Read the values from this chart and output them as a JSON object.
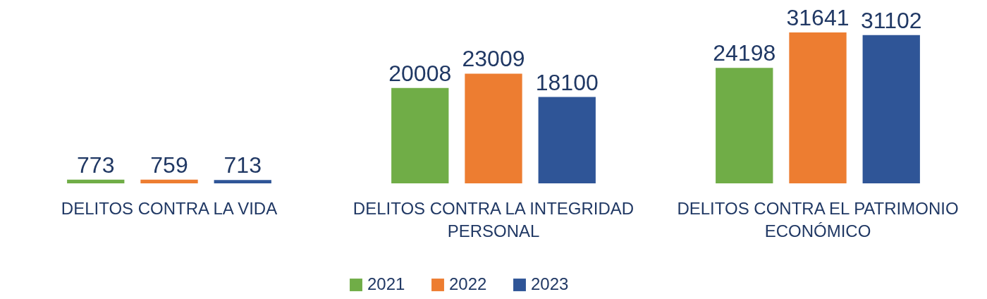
{
  "chart_data": {
    "type": "bar",
    "categories": [
      "DELITOS CONTRA LA VIDA",
      "DELITOS CONTRA LA INTEGRIDAD PERSONAL",
      "DELITOS CONTRA EL PATRIMONIO ECONÓMICO"
    ],
    "series": [
      {
        "name": "2021",
        "color": "#70ad47",
        "values": [
          773,
          20008,
          24198
        ]
      },
      {
        "name": "2022",
        "color": "#ed7d31",
        "values": [
          759,
          23009,
          31641
        ]
      },
      {
        "name": "2023",
        "color": "#2f5597",
        "values": [
          713,
          18100,
          31102
        ]
      }
    ],
    "data_labels": true,
    "legend": "bottom",
    "tick_labels": "x"
  }
}
